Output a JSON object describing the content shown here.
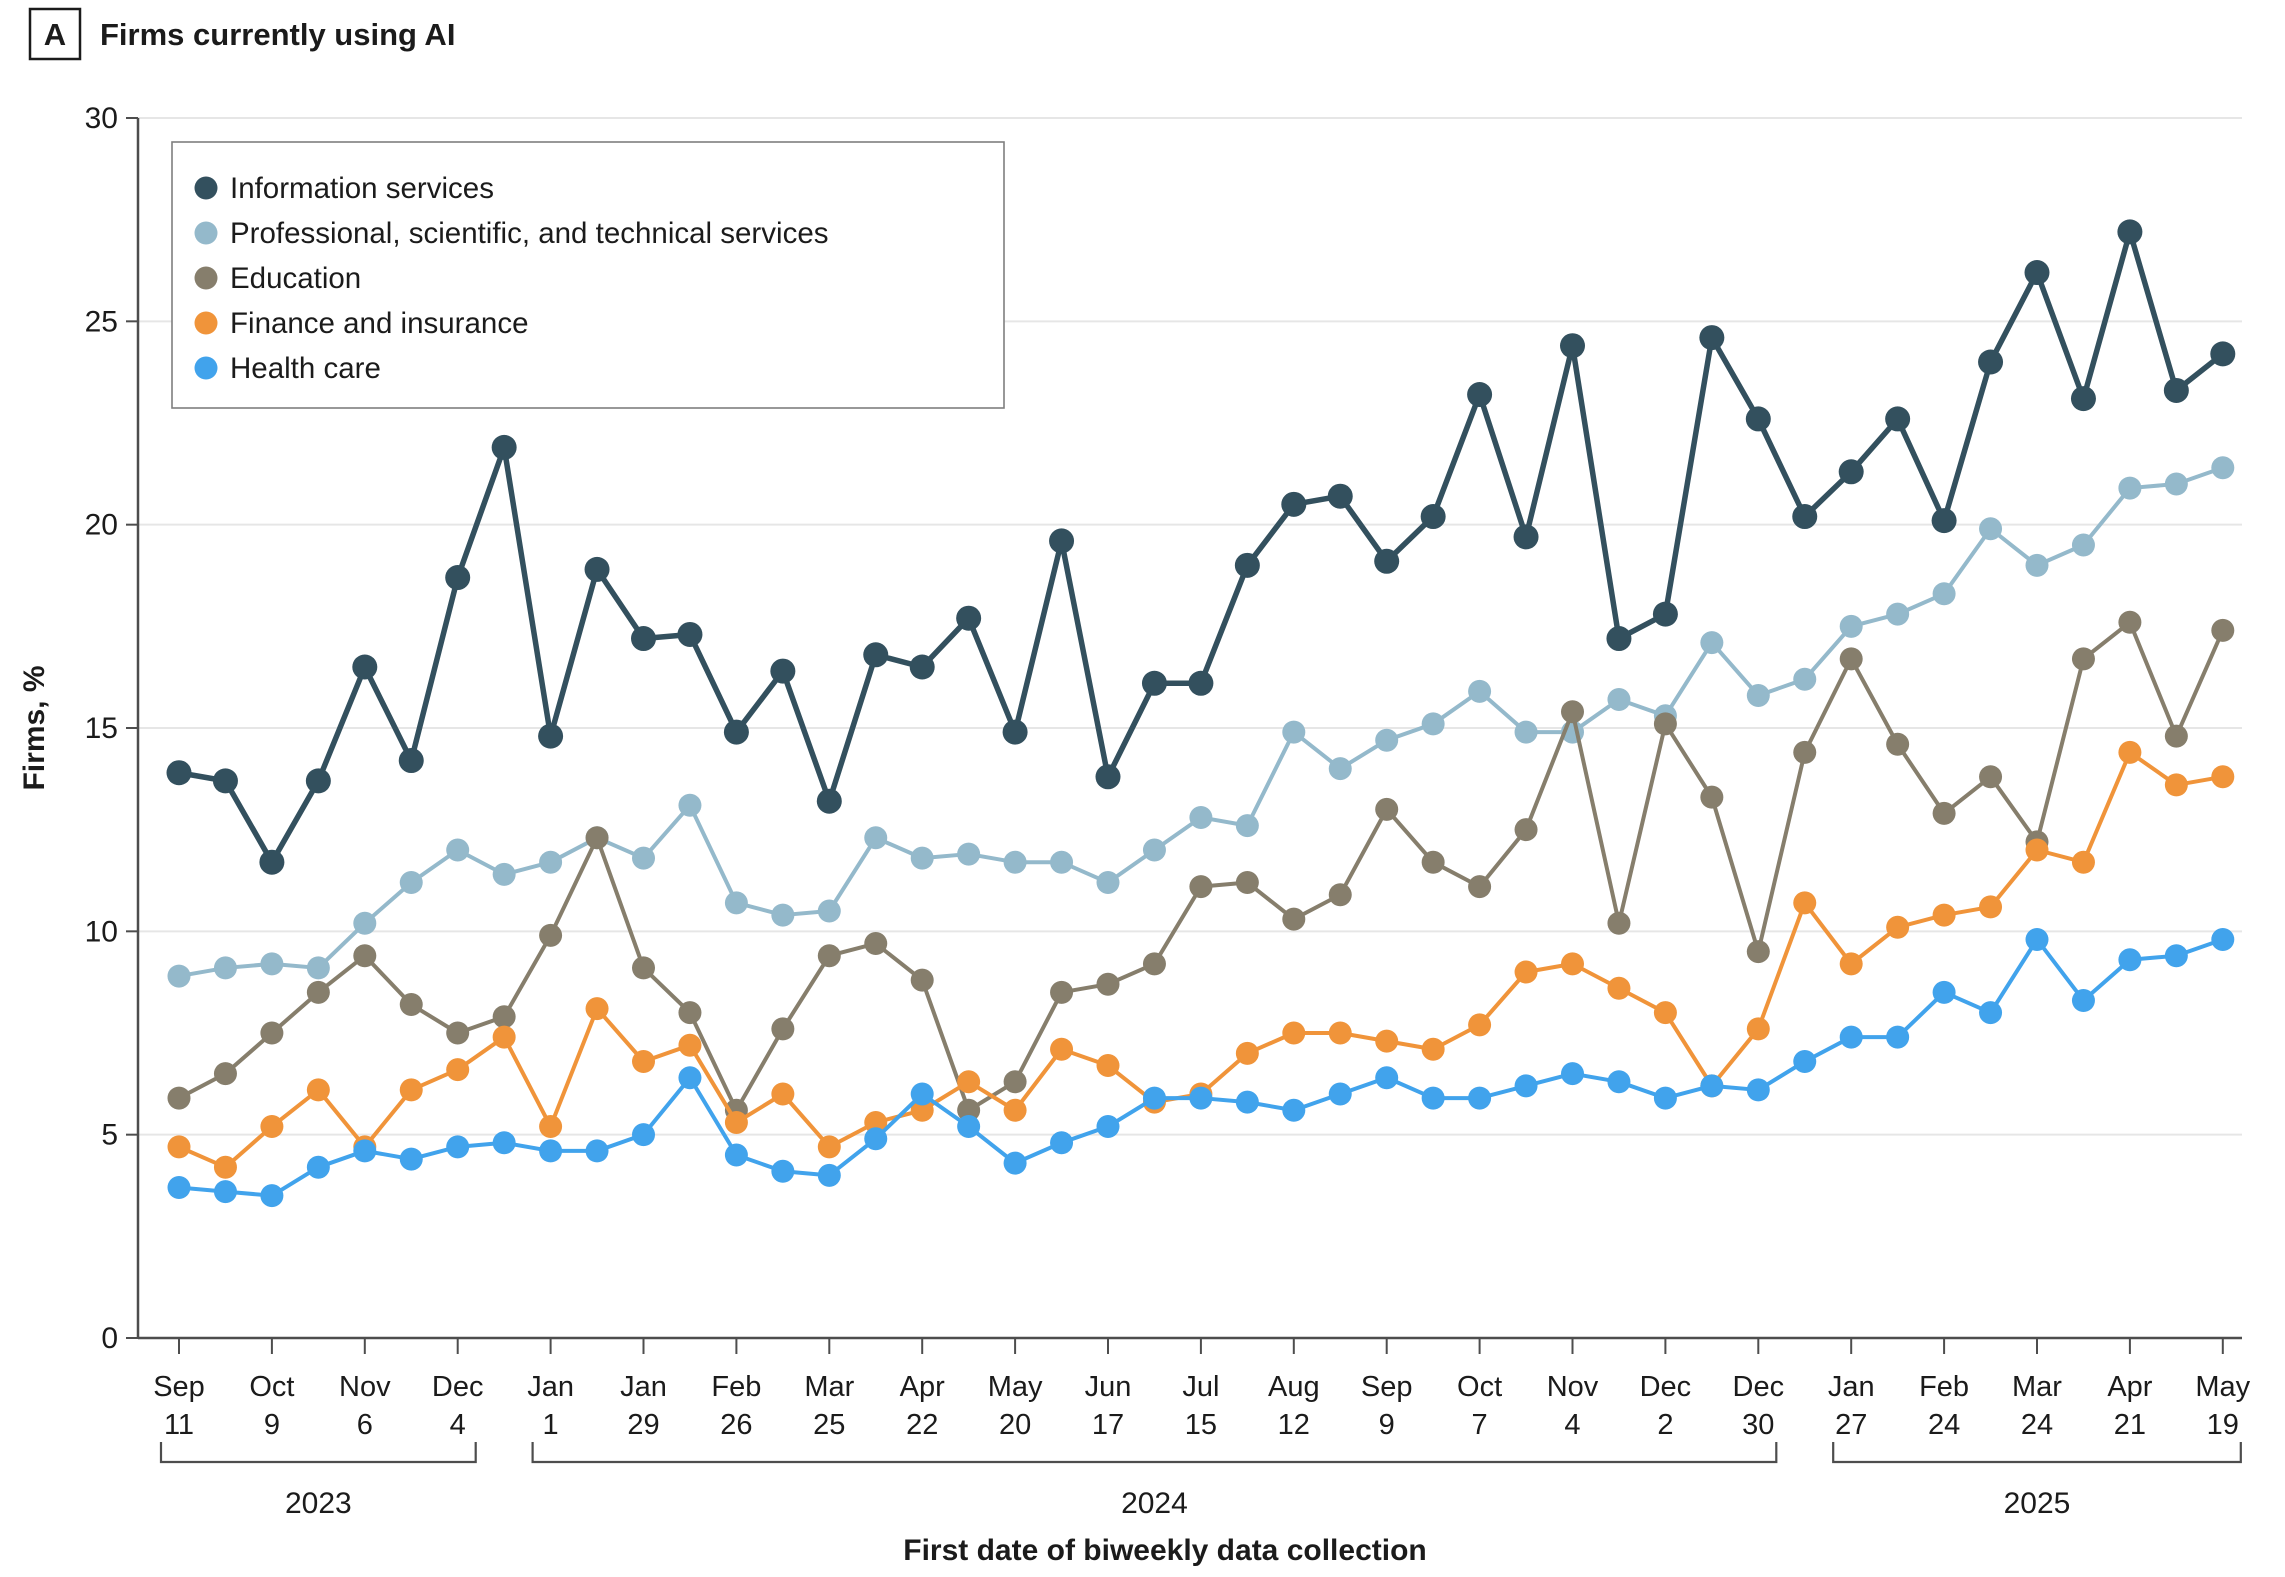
{
  "header": {
    "panel_label": "A",
    "title": "Firms currently using AI"
  },
  "chart_data": {
    "type": "line",
    "title": "Firms currently using AI",
    "xlabel": "First date of biweekly data collection",
    "ylabel": "Firms, %",
    "ylim": [
      0,
      30
    ],
    "y_ticks": [
      0,
      5,
      10,
      15,
      20,
      25,
      30
    ],
    "grid": "horizontal",
    "legend_position": "top-left-inside",
    "marker": "circle",
    "x": [
      "Sep 11, 2023",
      "Sep 25, 2023",
      "Oct 9, 2023",
      "Oct 23, 2023",
      "Nov 6, 2023",
      "Nov 20, 2023",
      "Dec 4, 2023",
      "Dec 18, 2023",
      "Jan 1, 2024",
      "Jan 15, 2024",
      "Jan 29, 2024",
      "Feb 12, 2024",
      "Feb 26, 2024",
      "Mar 11, 2024",
      "Mar 25, 2024",
      "Apr 8, 2024",
      "Apr 22, 2024",
      "May 6, 2024",
      "May 20, 2024",
      "Jun 3, 2024",
      "Jun 17, 2024",
      "Jul 1, 2024",
      "Jul 15, 2024",
      "Jul 29, 2024",
      "Aug 12, 2024",
      "Aug 26, 2024",
      "Sep 9, 2024",
      "Sep 23, 2024",
      "Oct 7, 2024",
      "Oct 21, 2024",
      "Nov 4, 2024",
      "Nov 18, 2024",
      "Dec 2, 2024",
      "Dec 16, 2024",
      "Dec 30, 2024",
      "Jan 13, 2025",
      "Jan 27, 2025",
      "Feb 10, 2025",
      "Feb 24, 2025",
      "Mar 10, 2025",
      "Mar 24, 2025",
      "Apr 7, 2025",
      "Apr 21, 2025",
      "May 5, 2025",
      "May 19, 2025"
    ],
    "x_tick_indices": [
      0,
      2,
      4,
      6,
      8,
      10,
      12,
      14,
      16,
      18,
      20,
      22,
      24,
      26,
      28,
      30,
      32,
      34,
      36,
      38,
      40,
      42,
      44
    ],
    "x_tick_labels": [
      [
        "Sep",
        "11"
      ],
      [
        "Oct",
        "9"
      ],
      [
        "Nov",
        "6"
      ],
      [
        "Dec",
        "4"
      ],
      [
        "Jan",
        "1"
      ],
      [
        "Jan",
        "29"
      ],
      [
        "Feb",
        "26"
      ],
      [
        "Mar",
        "25"
      ],
      [
        "Apr",
        "22"
      ],
      [
        "May",
        "20"
      ],
      [
        "Jun",
        "17"
      ],
      [
        "Jul",
        "15"
      ],
      [
        "Aug",
        "12"
      ],
      [
        "Sep",
        "9"
      ],
      [
        "Oct",
        "7"
      ],
      [
        "Nov",
        "4"
      ],
      [
        "Dec",
        "2"
      ],
      [
        "Dec",
        "30"
      ],
      [
        "Jan",
        "27"
      ],
      [
        "Feb",
        "24"
      ],
      [
        "Mar",
        "24"
      ],
      [
        "Apr",
        "21"
      ],
      [
        "May",
        "19"
      ]
    ],
    "year_groups": [
      {
        "label": "2023",
        "from_index": 0,
        "to_index": 6
      },
      {
        "label": "2024",
        "from_index": 8,
        "to_index": 34
      },
      {
        "label": "2025",
        "from_index": 36,
        "to_index": 44
      }
    ],
    "series": [
      {
        "name": "Information services",
        "color": "#33505e",
        "values": [
          13.9,
          13.7,
          11.7,
          13.7,
          16.5,
          14.2,
          18.7,
          21.9,
          14.8,
          18.9,
          17.2,
          17.3,
          14.9,
          16.4,
          13.2,
          16.8,
          16.5,
          17.7,
          14.9,
          19.6,
          13.8,
          16.1,
          16.1,
          19.0,
          20.5,
          20.7,
          19.1,
          20.2,
          23.2,
          19.7,
          24.4,
          17.2,
          17.8,
          24.6,
          22.6,
          20.2,
          21.3,
          22.6,
          20.1,
          24.0,
          26.2,
          23.1,
          27.2,
          23.3,
          24.2
        ]
      },
      {
        "name": "Professional, scientific, and technical services",
        "color": "#94b9cb",
        "values": [
          8.9,
          9.1,
          9.2,
          9.1,
          10.2,
          11.2,
          12.0,
          11.4,
          11.7,
          12.3,
          11.8,
          13.1,
          10.7,
          10.4,
          10.5,
          12.3,
          11.8,
          11.9,
          11.7,
          11.7,
          11.2,
          12.0,
          12.8,
          12.6,
          14.9,
          14.0,
          14.7,
          15.1,
          15.9,
          14.9,
          14.9,
          15.7,
          15.3,
          17.1,
          15.8,
          16.2,
          17.5,
          17.8,
          18.3,
          19.9,
          19.0,
          19.5,
          20.9,
          21.0,
          21.4
        ]
      },
      {
        "name": "Education",
        "color": "#867e6c",
        "values": [
          5.9,
          6.5,
          7.5,
          8.5,
          9.4,
          8.2,
          7.5,
          7.9,
          9.9,
          12.3,
          9.1,
          8.0,
          5.6,
          7.6,
          9.4,
          9.7,
          8.8,
          5.6,
          6.3,
          8.5,
          8.7,
          9.2,
          11.1,
          11.2,
          10.3,
          10.9,
          13.0,
          11.7,
          11.1,
          12.5,
          15.4,
          10.2,
          15.1,
          13.3,
          9.5,
          14.4,
          16.7,
          14.6,
          12.9,
          13.8,
          12.2,
          16.7,
          17.6,
          14.8,
          17.4
        ]
      },
      {
        "name": "Finance and insurance",
        "color": "#f0943a",
        "values": [
          4.7,
          4.2,
          5.2,
          6.1,
          4.7,
          6.1,
          6.6,
          7.4,
          5.2,
          8.1,
          6.8,
          7.2,
          5.3,
          6.0,
          4.7,
          5.3,
          5.6,
          6.3,
          5.6,
          7.1,
          6.7,
          5.8,
          6.0,
          7.0,
          7.5,
          7.5,
          7.3,
          7.1,
          7.7,
          9.0,
          9.2,
          8.6,
          8.0,
          6.2,
          7.6,
          10.7,
          9.2,
          10.1,
          10.4,
          10.6,
          12.0,
          11.7,
          14.4,
          13.6,
          13.8
        ]
      },
      {
        "name": "Health care",
        "color": "#41a3ec",
        "values": [
          3.7,
          3.6,
          3.5,
          4.2,
          4.6,
          4.4,
          4.7,
          4.8,
          4.6,
          4.6,
          5.0,
          6.4,
          4.5,
          4.1,
          4.0,
          4.9,
          6.0,
          5.2,
          4.3,
          4.8,
          5.2,
          5.9,
          5.9,
          5.8,
          5.6,
          6.0,
          6.4,
          5.9,
          5.9,
          6.2,
          6.5,
          6.3,
          5.9,
          6.2,
          6.1,
          6.8,
          7.4,
          7.4,
          8.5,
          8.0,
          9.8,
          8.3,
          9.3,
          9.4,
          9.8
        ]
      }
    ]
  }
}
